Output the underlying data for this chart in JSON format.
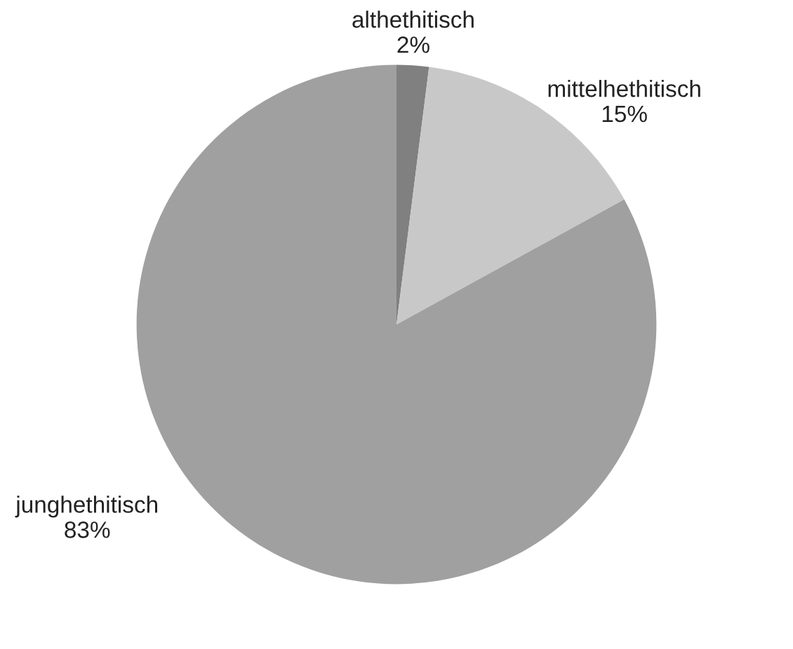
{
  "chart_data": {
    "type": "pie",
    "categories": [
      "althethitisch",
      "mittelhethitisch",
      "junghethitisch"
    ],
    "values": [
      2,
      15,
      83
    ],
    "value_labels": [
      "2%",
      "15%",
      "83%"
    ],
    "colors": [
      "#808080",
      "#c8c8c8",
      "#a0a0a0"
    ],
    "legend": false
  }
}
